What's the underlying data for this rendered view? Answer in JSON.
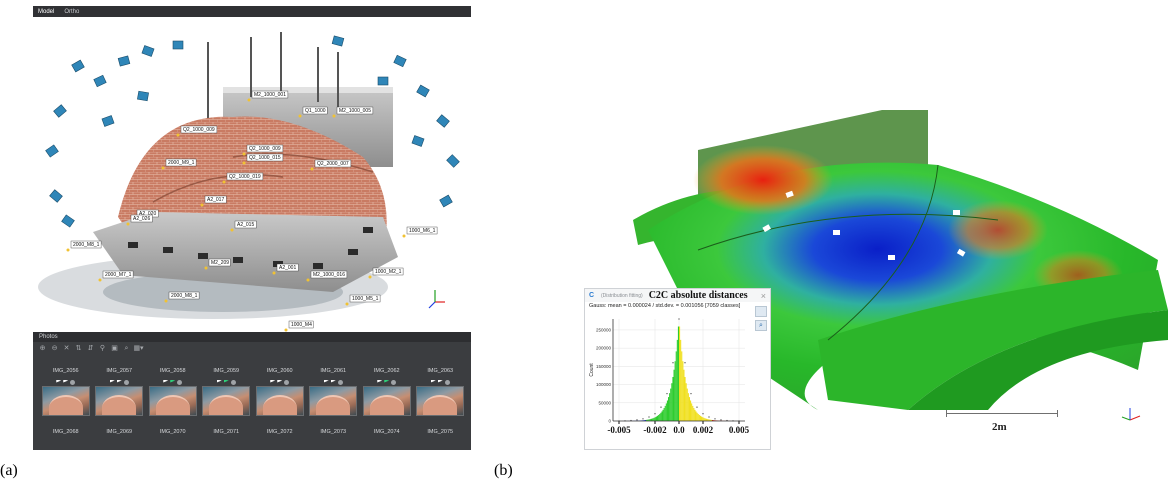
{
  "captions": {
    "a": "(a)",
    "b": "(b)"
  },
  "app": {
    "tabs": [
      "Model",
      "Ortho"
    ],
    "photos_panel_title": "Photos",
    "thumbnail_row_1": [
      "IMG_2056",
      "IMG_2057",
      "IMG_2058",
      "IMG_2059",
      "IMG_2060",
      "IMG_2061",
      "IMG_2062",
      "IMG_2063"
    ],
    "thumbnail_row_2": [
      "IMG_2068",
      "IMG_2069",
      "IMG_2070",
      "IMG_2071",
      "IMG_2072",
      "IMG_2073",
      "IMG_2074",
      "IMG_2075"
    ]
  },
  "markers": [
    "Q2_1000_009",
    "M2_1000_001",
    "Q1_1000",
    "M2_1000_005",
    "Q2_1000_009",
    "2000_M9_1",
    "Q2_1000_015",
    "Q2_2000_007",
    "Q2_1000_019",
    "A2_017",
    "A2_020",
    "A2_026",
    "A2_015",
    "1000_M6_1",
    "2000_M8_1",
    "M2_209",
    "A2_001",
    "2000_M7_1",
    "M2_1000_016",
    "1000_M2_1",
    "2000_M8_1",
    "1000_M5_1",
    "1000_M4"
  ],
  "colors": {
    "tab_bar": "#303134",
    "photos_panel": "#3b3d40",
    "camera_marker": "#2f86b8",
    "brick": "#c97b63",
    "hist_blue": "#1030d0",
    "hist_green": "#2fcc2f",
    "hist_red": "#e02010"
  },
  "histogram": {
    "window_name": "(Distribution fitting)",
    "title": "C2C absolute distances",
    "stats": "Gauss: mean = 0.000024 / std.dev. = 0.001056 [7059 classes]",
    "ylabel": "Count",
    "close_icon": "×"
  },
  "scalebar_label": "2m",
  "chart_data": {
    "type": "bar",
    "title": "C2C absolute distances",
    "xlabel": "",
    "ylabel": "Count",
    "x": [
      -0.005,
      -0.0045,
      -0.004,
      -0.0035,
      -0.003,
      -0.0025,
      -0.002,
      -0.0015,
      -0.001,
      -0.0005,
      0.0,
      0.0005,
      0.001,
      0.0015,
      0.002,
      0.0025,
      0.003,
      0.0035,
      0.004,
      0.0045,
      0.005
    ],
    "values": [
      0,
      500,
      1500,
      3000,
      6000,
      11000,
      20000,
      38000,
      75000,
      160000,
      280000,
      160000,
      75000,
      38000,
      20000,
      11000,
      6000,
      3000,
      1500,
      500,
      0
    ],
    "xlim": [
      -0.0055,
      0.0055
    ],
    "ylim": [
      0,
      280000
    ],
    "x_tick_labels": [
      "-0.005",
      "-0.002",
      "0.0",
      "0.002",
      "0.005"
    ],
    "x_tick_values": [
      -0.005,
      -0.002,
      0.0,
      0.002,
      0.005
    ],
    "y_tick_labels": [
      "0",
      "50000",
      "100000",
      "150000",
      "200000",
      "250000"
    ],
    "y_tick_values": [
      0,
      50000,
      100000,
      150000,
      200000,
      250000
    ],
    "grid": true,
    "colormap": [
      "#1030d0",
      "#2fcc2f",
      "#f0e020",
      "#e02010"
    ]
  }
}
